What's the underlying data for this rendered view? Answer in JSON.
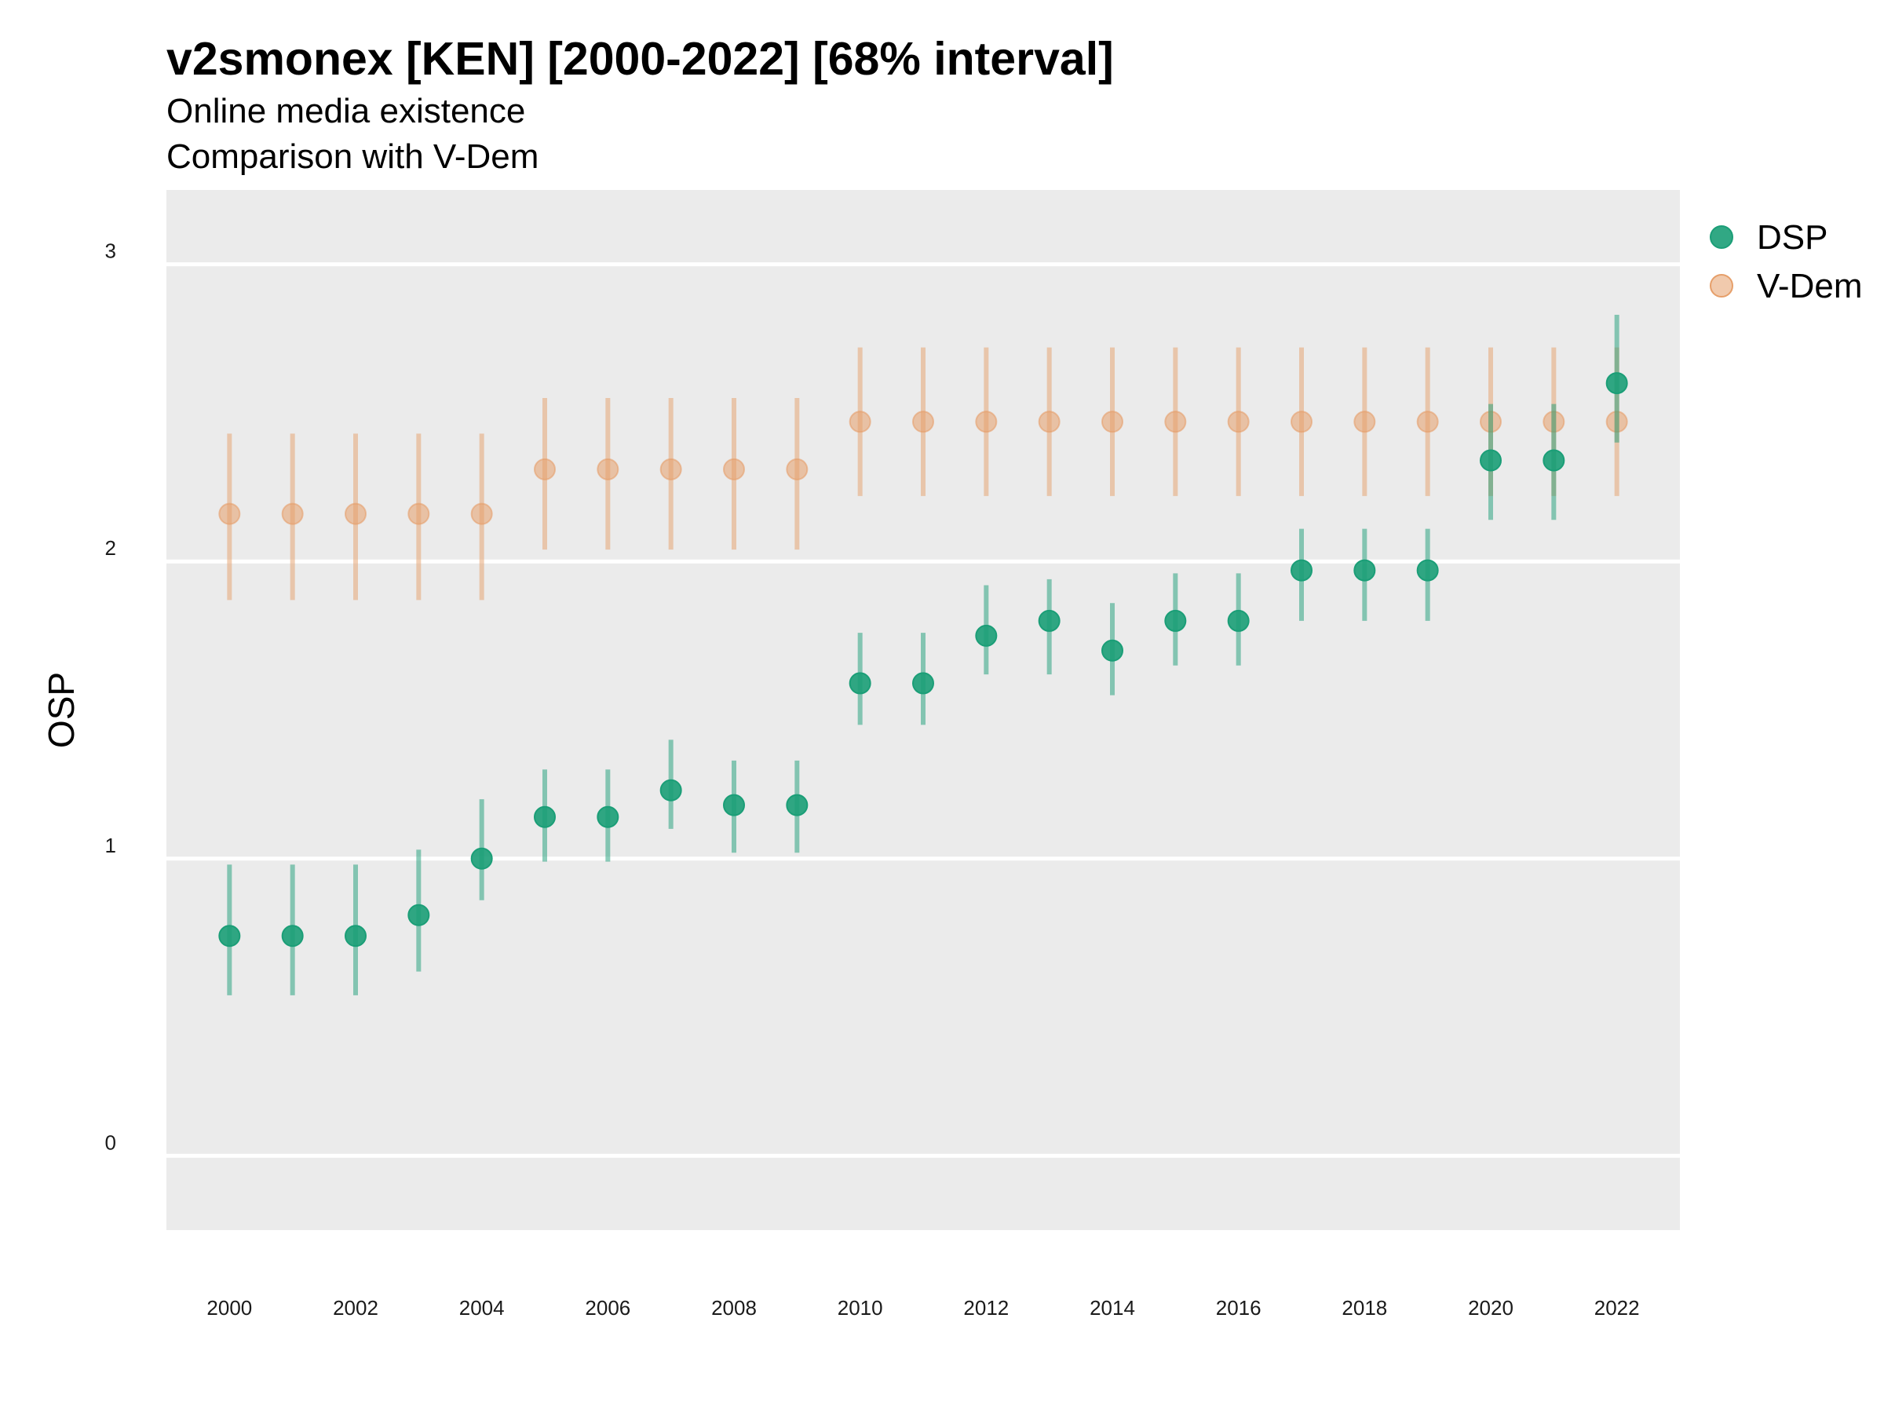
{
  "chart_data": {
    "type": "scatter",
    "title": "v2smonex [KEN] [2000-2022] [68% interval]",
    "subtitle": "Online media existence",
    "subtitle2": "Comparison with V-Dem",
    "xlabel": "",
    "ylabel": "OSP",
    "xlim": [
      1999,
      2023
    ],
    "ylim": [
      -0.25,
      3.25
    ],
    "x_ticks": [
      2000,
      2002,
      2004,
      2006,
      2008,
      2010,
      2012,
      2014,
      2016,
      2018,
      2020,
      2022
    ],
    "y_ticks": [
      0,
      1,
      2,
      3
    ],
    "grid": true,
    "legend_position": "right",
    "x": [
      2000,
      2001,
      2002,
      2003,
      2004,
      2005,
      2006,
      2007,
      2008,
      2009,
      2010,
      2011,
      2012,
      2013,
      2014,
      2015,
      2016,
      2017,
      2018,
      2019,
      2020,
      2021,
      2022
    ],
    "series": [
      {
        "name": "V-Dem",
        "color": "#E69F6A",
        "values": [
          2.16,
          2.16,
          2.16,
          2.16,
          2.16,
          2.31,
          2.31,
          2.31,
          2.31,
          2.31,
          2.47,
          2.47,
          2.47,
          2.47,
          2.47,
          2.47,
          2.47,
          2.47,
          2.47,
          2.47,
          2.47,
          2.47,
          2.47
        ],
        "lower": [
          1.87,
          1.87,
          1.87,
          1.87,
          1.87,
          2.04,
          2.04,
          2.04,
          2.04,
          2.04,
          2.22,
          2.22,
          2.22,
          2.22,
          2.22,
          2.22,
          2.22,
          2.22,
          2.22,
          2.22,
          2.22,
          2.22,
          2.22
        ],
        "upper": [
          2.43,
          2.43,
          2.43,
          2.43,
          2.43,
          2.55,
          2.55,
          2.55,
          2.55,
          2.55,
          2.72,
          2.72,
          2.72,
          2.72,
          2.72,
          2.72,
          2.72,
          2.72,
          2.72,
          2.72,
          2.72,
          2.72,
          2.72
        ]
      },
      {
        "name": "DSP",
        "color": "#1B9E77",
        "values": [
          0.74,
          0.74,
          0.74,
          0.81,
          1.0,
          1.14,
          1.14,
          1.23,
          1.18,
          1.18,
          1.59,
          1.59,
          1.75,
          1.8,
          1.7,
          1.8,
          1.8,
          1.97,
          1.97,
          1.97,
          2.34,
          2.34,
          2.6
        ],
        "lower": [
          0.54,
          0.54,
          0.54,
          0.62,
          0.86,
          0.99,
          0.99,
          1.1,
          1.02,
          1.02,
          1.45,
          1.45,
          1.62,
          1.62,
          1.55,
          1.65,
          1.65,
          1.8,
          1.8,
          1.8,
          2.14,
          2.14,
          2.4
        ],
        "upper": [
          0.98,
          0.98,
          0.98,
          1.03,
          1.2,
          1.3,
          1.3,
          1.4,
          1.33,
          1.33,
          1.76,
          1.76,
          1.92,
          1.94,
          1.86,
          1.96,
          1.96,
          2.11,
          2.11,
          2.11,
          2.53,
          2.53,
          2.83
        ]
      }
    ],
    "legend": [
      {
        "name": "DSP",
        "color": "#1B9E77"
      },
      {
        "name": "V-Dem",
        "color": "#E69F6A"
      }
    ]
  }
}
